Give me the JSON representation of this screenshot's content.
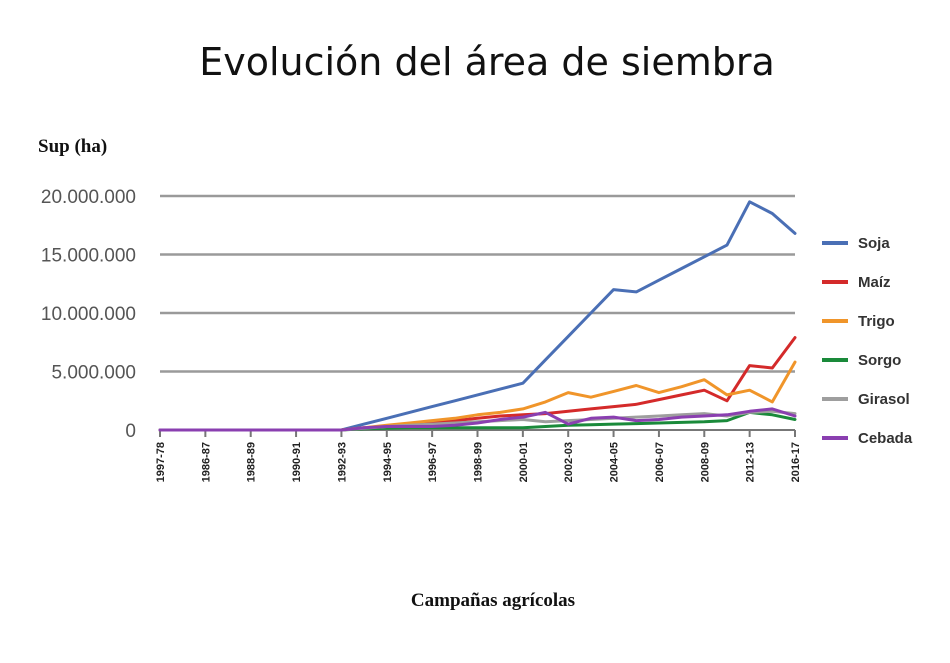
{
  "chart_data": {
    "type": "line",
    "title": "Evolución del área de siembra",
    "ylabel": "Sup (ha)",
    "xlabel": "Campañas agrícolas",
    "ylim": [
      0,
      20000000
    ],
    "yticks": [
      0,
      5000000,
      10000000,
      15000000,
      20000000
    ],
    "ytick_labels": [
      "0",
      "5.000.000",
      "10.000.000",
      "15.000.000",
      "20.000.000"
    ],
    "xtick_labels": [
      "1997-78",
      "1986-87",
      "1988-89",
      "1990-91",
      "1992-93",
      "1994-95",
      "1996-97",
      "1998-99",
      "2000-01",
      "2002-03",
      "2004-05",
      "2006-07",
      "2008-09",
      "2012-13",
      "2016-17"
    ],
    "grid": true,
    "legend_position": "right",
    "x": [
      0,
      0.5,
      1,
      1.5,
      2,
      2.5,
      3,
      3.5,
      4,
      4.5,
      5,
      5.5,
      6,
      6.5,
      7,
      7.5,
      8,
      8.5,
      9,
      9.5,
      10,
      10.5,
      11,
      11.5,
      12,
      12.5,
      13,
      13.5,
      14
    ],
    "series": [
      {
        "name": "Soja",
        "color": "#4a6fb5",
        "values": [
          0,
          0,
          0,
          0,
          0,
          0,
          0,
          0,
          0,
          500000,
          1000000,
          1500000,
          2000000,
          2500000,
          3000000,
          3500000,
          4000000,
          6000000,
          8000000,
          10000000,
          12000000,
          11800000,
          12800000,
          13800000,
          14800000,
          15800000,
          19500000,
          18500000,
          16800000
        ]
      },
      {
        "name": "Maíz",
        "color": "#d42a2a",
        "values": [
          0,
          0,
          0,
          0,
          0,
          0,
          0,
          0,
          0,
          200000,
          300000,
          400000,
          600000,
          800000,
          1000000,
          1200000,
          1300000,
          1400000,
          1600000,
          1800000,
          2000000,
          2200000,
          2600000,
          3000000,
          3400000,
          2500000,
          5500000,
          5300000,
          7900000
        ]
      },
      {
        "name": "Trigo",
        "color": "#f0952a",
        "values": [
          0,
          0,
          0,
          0,
          0,
          0,
          0,
          0,
          0,
          200000,
          400000,
          600000,
          800000,
          1000000,
          1300000,
          1500000,
          1800000,
          2400000,
          3200000,
          2800000,
          3300000,
          3800000,
          3200000,
          3700000,
          4300000,
          3000000,
          3400000,
          2400000,
          5800000
        ]
      },
      {
        "name": "Sorgo",
        "color": "#1a8a3a",
        "values": [
          0,
          0,
          0,
          0,
          0,
          0,
          0,
          0,
          0,
          100000,
          150000,
          200000,
          200000,
          200000,
          200000,
          200000,
          200000,
          300000,
          400000,
          450000,
          500000,
          550000,
          600000,
          650000,
          700000,
          800000,
          1500000,
          1300000,
          900000
        ]
      },
      {
        "name": "Girasol",
        "color": "#9e9e9e",
        "values": [
          0,
          0,
          0,
          0,
          0,
          0,
          0,
          0,
          0,
          150000,
          300000,
          400000,
          500000,
          600000,
          700000,
          800000,
          900000,
          700000,
          800000,
          900000,
          1000000,
          1100000,
          1200000,
          1300000,
          1400000,
          1200000,
          1500000,
          1600000,
          1400000
        ]
      },
      {
        "name": "Cebada",
        "color": "#8a3fb0",
        "values": [
          0,
          0,
          0,
          0,
          0,
          0,
          0,
          0,
          0,
          200000,
          300000,
          300000,
          300000,
          400000,
          600000,
          900000,
          1100000,
          1500000,
          500000,
          1000000,
          1100000,
          800000,
          900000,
          1100000,
          1200000,
          1300000,
          1600000,
          1800000,
          1200000
        ]
      }
    ]
  }
}
